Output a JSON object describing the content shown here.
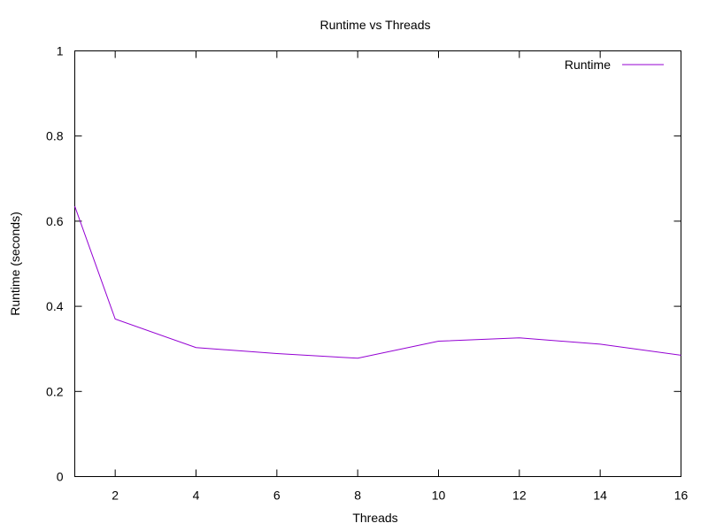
{
  "chart_data": {
    "type": "line",
    "title": "Runtime vs Threads",
    "xlabel": "Threads",
    "ylabel": "Runtime (seconds)",
    "xlim": [
      1,
      16
    ],
    "ylim": [
      0,
      1
    ],
    "x_ticks": [
      2,
      4,
      6,
      8,
      10,
      12,
      14,
      16
    ],
    "y_ticks": [
      0,
      0.2,
      0.4,
      0.6,
      0.8,
      1
    ],
    "y_tick_labels": [
      "0",
      "0.2",
      "0.4",
      "0.6",
      "0.8",
      "1"
    ],
    "grid": false,
    "legend_position": "top-right",
    "series": [
      {
        "name": "Runtime",
        "color": "#9400d3",
        "x": [
          1,
          2,
          4,
          6,
          8,
          10,
          12,
          14,
          16
        ],
        "y": [
          0.635,
          0.37,
          0.303,
          0.289,
          0.278,
          0.318,
          0.326,
          0.311,
          0.285
        ]
      }
    ]
  }
}
